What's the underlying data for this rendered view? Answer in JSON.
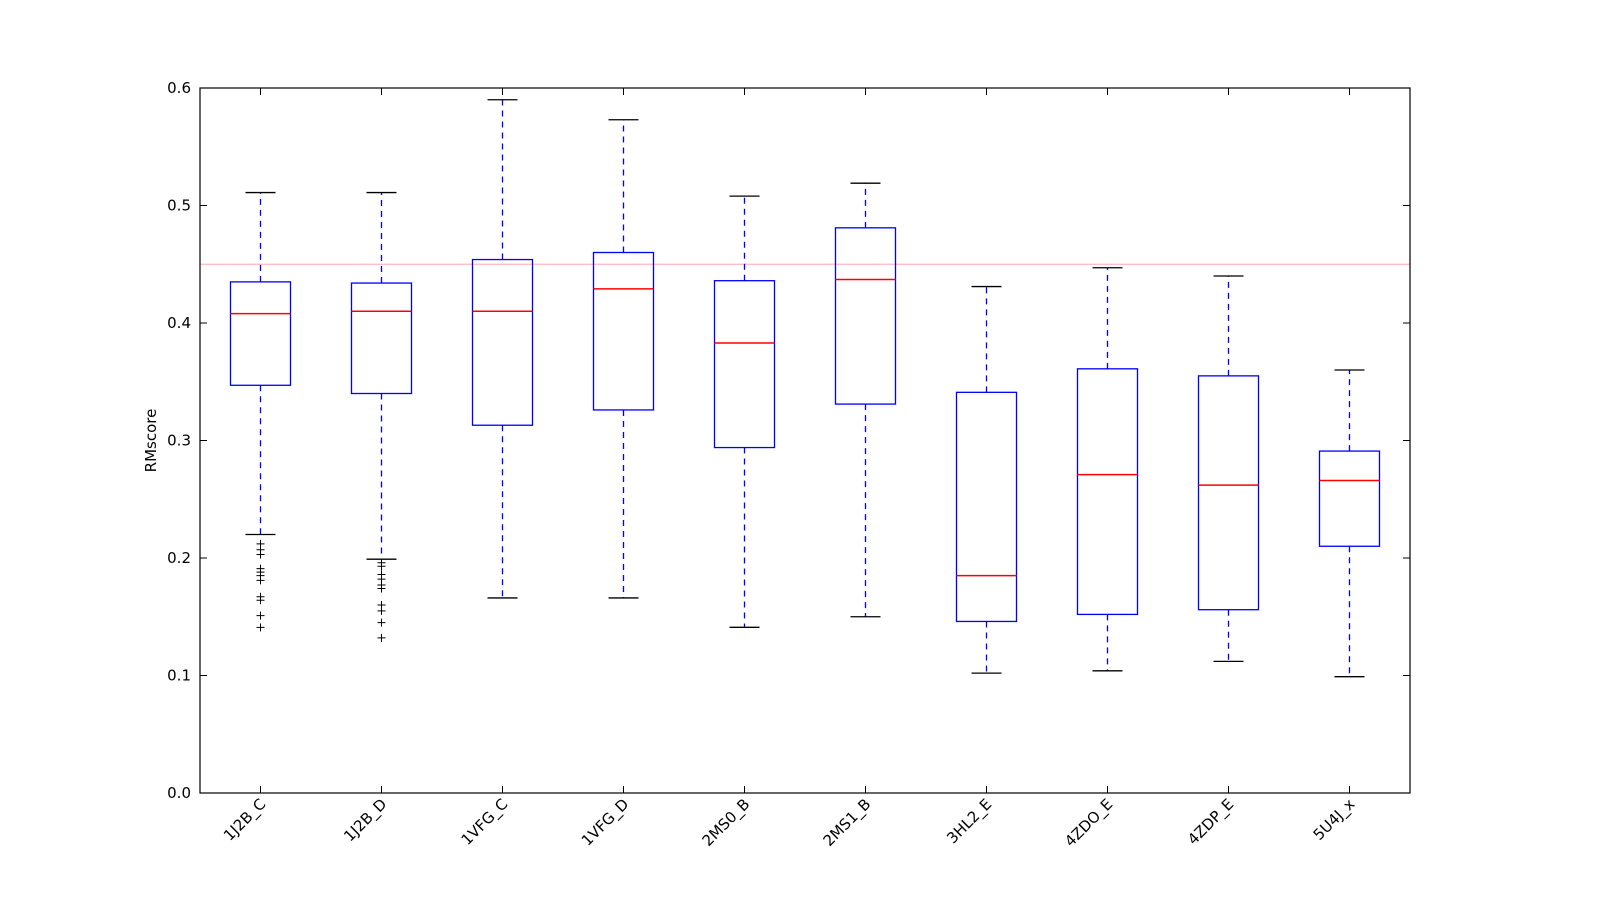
{
  "chart_data": {
    "type": "box",
    "title": "",
    "xlabel": "",
    "ylabel": "RMscore",
    "ylim": [
      0.0,
      0.6
    ],
    "yticks": [
      "0.0",
      "0.1",
      "0.2",
      "0.3",
      "0.4",
      "0.5",
      "0.6"
    ],
    "grid": false,
    "reference_line": {
      "y": 0.45,
      "color": "#ffb6c1"
    },
    "colors": {
      "box": "#0000ff",
      "median": "#ff0000",
      "whisker": "#0000ff",
      "cap": "#000000",
      "flier": "#000000"
    },
    "categories": [
      "1J2B_C",
      "1J2B_D",
      "1VFG_C",
      "1VFG_D",
      "2MS0_B",
      "2MS1_B",
      "3HL2_E",
      "4ZDO_E",
      "4ZDP_E",
      "5U4J_x"
    ],
    "boxes": [
      {
        "whislo": 0.22,
        "q1": 0.347,
        "med": 0.408,
        "q3": 0.435,
        "whishi": 0.511,
        "fliers": [
          0.212,
          0.207,
          0.203,
          0.191,
          0.188,
          0.185,
          0.181,
          0.167,
          0.164,
          0.151,
          0.141
        ]
      },
      {
        "whislo": 0.199,
        "q1": 0.34,
        "med": 0.41,
        "q3": 0.434,
        "whishi": 0.511,
        "fliers": [
          0.196,
          0.193,
          0.186,
          0.182,
          0.177,
          0.174,
          0.16,
          0.155,
          0.145,
          0.132
        ]
      },
      {
        "whislo": 0.166,
        "q1": 0.313,
        "med": 0.41,
        "q3": 0.454,
        "whishi": 0.59,
        "fliers": []
      },
      {
        "whislo": 0.166,
        "q1": 0.326,
        "med": 0.429,
        "q3": 0.46,
        "whishi": 0.573,
        "fliers": []
      },
      {
        "whislo": 0.141,
        "q1": 0.294,
        "med": 0.383,
        "q3": 0.436,
        "whishi": 0.508,
        "fliers": []
      },
      {
        "whislo": 0.15,
        "q1": 0.331,
        "med": 0.437,
        "q3": 0.481,
        "whishi": 0.519,
        "fliers": []
      },
      {
        "whislo": 0.102,
        "q1": 0.146,
        "med": 0.185,
        "q3": 0.341,
        "whishi": 0.431,
        "fliers": []
      },
      {
        "whislo": 0.104,
        "q1": 0.152,
        "med": 0.271,
        "q3": 0.361,
        "whishi": 0.447,
        "fliers": []
      },
      {
        "whislo": 0.112,
        "q1": 0.156,
        "med": 0.262,
        "q3": 0.355,
        "whishi": 0.44,
        "fliers": []
      },
      {
        "whislo": 0.099,
        "q1": 0.21,
        "med": 0.266,
        "q3": 0.291,
        "whishi": 0.36,
        "fliers": []
      }
    ]
  }
}
